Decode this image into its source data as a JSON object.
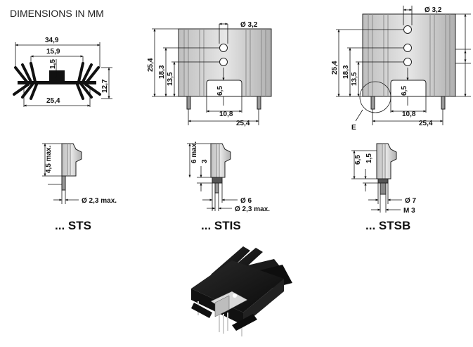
{
  "title": "DIMENSIONS IN MM",
  "profile": {
    "width_total": "34,9",
    "width_inner": "15,9",
    "web_thickness": "1,5",
    "height": "12,7",
    "base_width": "25,4"
  },
  "front_view": {
    "hole_diameter": "Ø 3,2",
    "height_total": "25,4",
    "hole_upper": "18,3",
    "hole_lower": "13,5",
    "slot_depth": "6,5",
    "slot_width": "10,8",
    "pin_pitch": "25,4"
  },
  "front_view_b": {
    "hole_diameter": "Ø 3,2",
    "height_total": "25,4",
    "hole_upper": "18,3",
    "hole_lower": "13,5",
    "slot_depth": "6,5",
    "slot_width": "10,8",
    "pin_pitch": "25,4",
    "detail_marker": "E"
  },
  "variants": [
    {
      "suffix": "... STS",
      "dim_a": "4,5 max.",
      "dim_pin": "Ø 2,3 max."
    },
    {
      "suffix": "... STIS",
      "dim_a": "6 max.",
      "dim_b": "3",
      "dim_pin": "Ø 6",
      "dim_pin2": "Ø 2,3 max."
    },
    {
      "suffix": "... STSB",
      "dim_a": "6,5",
      "dim_b": "1,5",
      "dim_pin": "Ø 7",
      "dim_pin2": "M 3"
    }
  ]
}
